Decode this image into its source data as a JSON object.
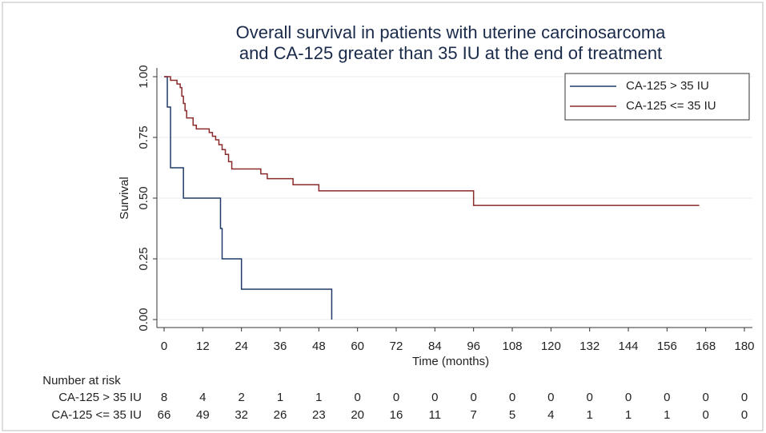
{
  "chart_data": {
    "type": "step",
    "title": [
      "Overall survival in patients with uterine carcinosarcoma",
      "and CA-125 greater than 35 IU at the end of treatment"
    ],
    "x_label": "Time (months)",
    "y_label": "Survival",
    "xlim": [
      0,
      180
    ],
    "ylim": [
      0,
      1
    ],
    "xticks": [
      0,
      12,
      24,
      36,
      48,
      60,
      72,
      84,
      96,
      108,
      120,
      132,
      144,
      156,
      168,
      180
    ],
    "yticks": [
      {
        "value": 0,
        "label": "0.00"
      },
      {
        "value": 0.25,
        "label": "0.25"
      },
      {
        "value": 0.5,
        "label": "0.50"
      },
      {
        "value": 0.75,
        "label": "0.75"
      },
      {
        "value": 1,
        "label": "1.00"
      }
    ],
    "grid": true,
    "legend": "upper right",
    "series": [
      {
        "name": "CA-125 > 35 IU",
        "color": "#1f3a68",
        "x": [
          0,
          1,
          2,
          6,
          17.5,
          18,
          24,
          52
        ],
        "values": [
          1,
          0.875,
          0.625,
          0.5,
          0.375,
          0.25,
          0.125,
          0
        ]
      },
      {
        "name": "CA-125 <= 35 IU",
        "color": "#8b2a2a",
        "x": [
          0,
          2,
          4,
          5,
          5.5,
          6,
          6.5,
          7,
          9,
          10,
          14,
          15,
          16,
          17,
          18,
          19,
          20,
          21,
          30,
          32,
          40,
          48,
          96,
          166
        ],
        "values": [
          1,
          0.985,
          0.97,
          0.955,
          0.92,
          0.89,
          0.86,
          0.83,
          0.8,
          0.785,
          0.77,
          0.755,
          0.74,
          0.72,
          0.7,
          0.68,
          0.65,
          0.62,
          0.6,
          0.58,
          0.555,
          0.53,
          0.47,
          0.47
        ]
      }
    ],
    "risk_table": {
      "title": "Number at risk",
      "rows": [
        {
          "name": "CA-125 > 35 IU",
          "values": [
            8,
            4,
            2,
            1,
            1,
            0,
            0,
            0,
            0,
            0,
            0,
            0,
            0,
            0,
            0,
            0
          ]
        },
        {
          "name": "CA-125 <= 35 IU",
          "values": [
            66,
            49,
            32,
            26,
            23,
            20,
            16,
            11,
            7,
            5,
            4,
            1,
            1,
            1,
            0,
            0
          ]
        }
      ]
    }
  }
}
